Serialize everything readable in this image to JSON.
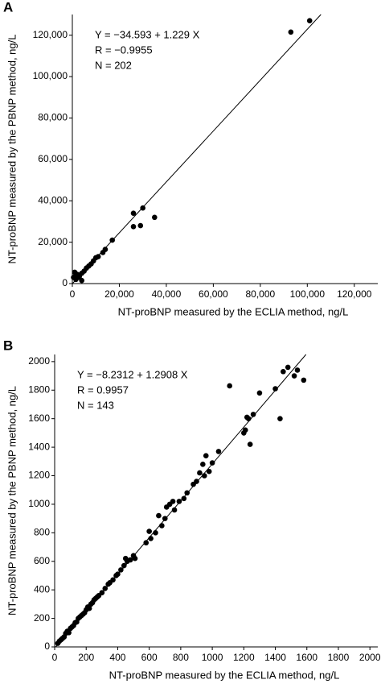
{
  "chart_data": [
    {
      "type": "scatter",
      "panel_label": "A",
      "xlabel": "NT-proBNP measured by the ECLIA method, ng/L",
      "ylabel": "NT-proBNP measured by the PBNP method, ng/L",
      "annotations": [
        "Y = −34.593 + 1.229 X",
        "R = −0.9955",
        "N = 202"
      ],
      "fit": {
        "intercept": -34.593,
        "slope": 1.229
      },
      "color": "#000000",
      "xlim": [
        0,
        130000
      ],
      "ylim": [
        0,
        130000
      ],
      "xticks": [
        0,
        {
          "value": 20000,
          "label": "20,000"
        },
        {
          "value": 40000,
          "label": "40,000"
        },
        {
          "value": 60000,
          "label": "60,000"
        },
        {
          "value": 80000,
          "label": "80,000"
        },
        {
          "value": 100000,
          "label": "100,000"
        },
        {
          "value": 120000,
          "label": "120,000"
        }
      ],
      "yticks": [
        0,
        {
          "value": 20000,
          "label": "20,000"
        },
        {
          "value": 40000,
          "label": "40,000"
        },
        {
          "value": 60000,
          "label": "60,000"
        },
        {
          "value": 80000,
          "label": "80,000"
        },
        {
          "value": 100000,
          "label": "100,000"
        },
        {
          "value": 120000,
          "label": "120,000"
        }
      ],
      "x": [
        500,
        1000,
        1500,
        2000,
        3000,
        4000,
        4000,
        5000,
        6000,
        7000,
        8000,
        9000,
        10000,
        11000,
        13000,
        14000,
        17000,
        26000,
        26000,
        30000,
        29000,
        35000,
        93000,
        101000,
        2500,
        1500
      ],
      "values": [
        3000,
        5500,
        2000,
        4500,
        3500,
        1500,
        5000,
        6000,
        7500,
        8500,
        9500,
        11000,
        12500,
        13000,
        15000,
        16500,
        21000,
        34000,
        27500,
        36500,
        28000,
        32000,
        121500,
        127000,
        3000,
        4000
      ]
    },
    {
      "type": "scatter",
      "panel_label": "B",
      "xlabel": "NT-proBNP measured by the ECLIA method, ng/L",
      "ylabel": "NT-proBNP measured by the PBNP method, ng/L",
      "annotations": [
        "Y = −8.2312 + 1.2908 X",
        "R = 0.9957",
        "N = 143"
      ],
      "fit": {
        "intercept": -8.2312,
        "slope": 1.2908
      },
      "color": "#000000",
      "xlim": [
        0,
        2050
      ],
      "ylim": [
        0,
        2050
      ],
      "xticks": [
        0,
        200,
        400,
        600,
        800,
        1000,
        1200,
        1400,
        1600,
        1800,
        2000
      ],
      "yticks": [
        0,
        200,
        400,
        600,
        800,
        1000,
        1200,
        1400,
        1600,
        1800,
        2000
      ],
      "x": [
        20,
        30,
        40,
        50,
        60,
        70,
        80,
        90,
        100,
        110,
        120,
        130,
        140,
        150,
        160,
        170,
        180,
        190,
        200,
        210,
        220,
        230,
        240,
        250,
        260,
        270,
        280,
        300,
        320,
        340,
        350,
        370,
        390,
        400,
        420,
        440,
        450,
        460,
        480,
        500,
        510,
        580,
        600,
        610,
        640,
        660,
        680,
        700,
        710,
        730,
        750,
        760,
        790,
        820,
        840,
        880,
        900,
        920,
        940,
        950,
        960,
        980,
        1000,
        1040,
        1110,
        1200,
        1210,
        1220,
        1230,
        1240,
        1260,
        1300,
        1400,
        1430,
        1450,
        1480,
        1520,
        1540,
        1580
      ],
      "values": [
        25,
        40,
        50,
        60,
        70,
        95,
        110,
        100,
        130,
        140,
        150,
        170,
        175,
        200,
        210,
        220,
        230,
        240,
        260,
        280,
        270,
        300,
        310,
        330,
        340,
        350,
        360,
        380,
        410,
        440,
        450,
        470,
        500,
        510,
        540,
        570,
        620,
        600,
        610,
        640,
        620,
        730,
        810,
        760,
        800,
        920,
        850,
        900,
        980,
        1000,
        1020,
        960,
        1020,
        1040,
        1080,
        1140,
        1160,
        1220,
        1280,
        1200,
        1340,
        1230,
        1290,
        1370,
        1830,
        1500,
        1520,
        1610,
        1600,
        1420,
        1630,
        1780,
        1810,
        1600,
        1930,
        1960,
        1900,
        1940,
        1870
      ]
    }
  ]
}
